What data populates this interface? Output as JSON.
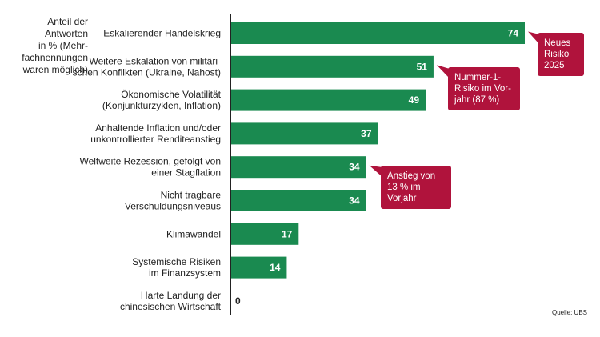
{
  "chart_data": {
    "type": "bar",
    "orientation": "horizontal",
    "categories": [
      "Eskalierender Handelskrieg",
      "Weitere Eskalation von militäri-\nschen Konflikten (Ukraine, Nahost)",
      "Ökonomische Volatilität\n(Konjunkturzyklen, Inflation)",
      "Anhaltende Inflation und/oder\nunkontrollierter Renditeanstieg",
      "Weltweite Rezession, gefolgt von\neiner Stagflation",
      "Nicht tragbare\nVerschuldungsniveaus",
      "Klimawandel",
      "Systemische Risiken\nim Finanzsystem",
      "Harte Landung der\nchinesischen Wirtschaft"
    ],
    "values": [
      74,
      51,
      49,
      37,
      34,
      34,
      17,
      14,
      0
    ],
    "xlim": [
      0,
      74
    ],
    "ylabel": "Anteil der\nAntworten\nin % (Mehr-\nfachnennungen\nwaren möglich)",
    "bar_color": "#1a8a50",
    "annotations": [
      {
        "text": "Neues\nRisiko\n2025",
        "category_index": 0,
        "color": "#b0133c"
      },
      {
        "text": "Nummer-1-\nRisiko im Vor-\njahr (87 %)",
        "category_index": 1,
        "color": "#b0133c"
      },
      {
        "text": "Anstieg von\n13 % im\nVorjahr",
        "category_index": 4,
        "color": "#b0133c"
      }
    ],
    "source": "Quelle: UBS",
    "grid": false
  }
}
